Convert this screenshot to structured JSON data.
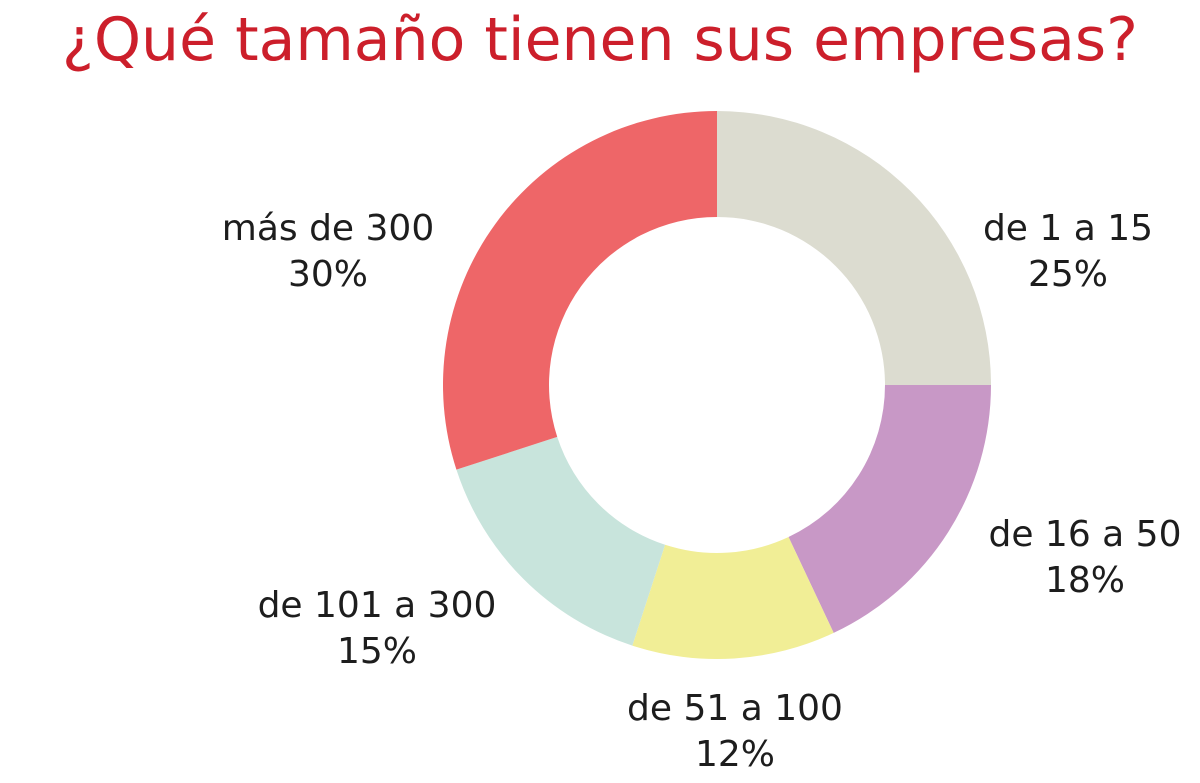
{
  "chart_data": {
    "type": "pie",
    "donut": true,
    "title": "¿Qué tamaño tienen sus empresas?",
    "colors": {
      "title": "#cc1f2b",
      "label": "#1d1d1d"
    },
    "slices": [
      {
        "label": "de 1 a 15",
        "pct_label": "25%",
        "value": 25,
        "color": "#dcdcd0"
      },
      {
        "label": "de 16 a 50",
        "pct_label": "18%",
        "value": 18,
        "color": "#c898c6"
      },
      {
        "label": "de 51 a 100",
        "pct_label": "12%",
        "value": 12,
        "color": "#f1ee96"
      },
      {
        "label": "de 101 a 300",
        "pct_label": "15%",
        "value": 15,
        "color": "#c8e4dc"
      },
      {
        "label": "más de 300",
        "pct_label": "30%",
        "value": 30,
        "color": "#ee6668"
      }
    ]
  }
}
